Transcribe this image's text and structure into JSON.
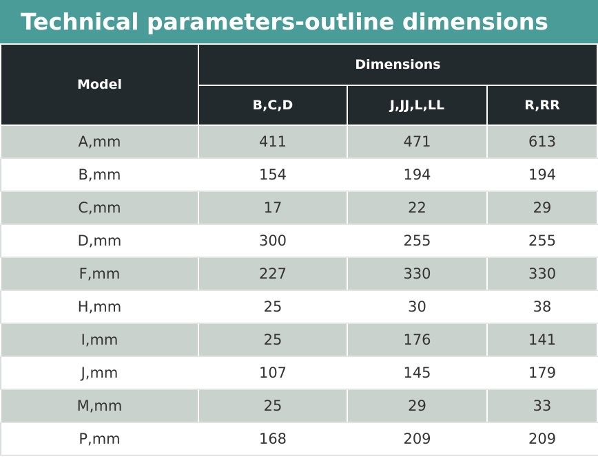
{
  "header": {
    "title": "Technical parameters-outline dimensions"
  },
  "table": {
    "model_header": "Model",
    "group_header": "Dimensions",
    "columns": [
      "B,C,D",
      "J,JJ,L,LL",
      "R,RR"
    ],
    "rows": [
      [
        "A,mm",
        411,
        471,
        613
      ],
      [
        "B,mm",
        154,
        194,
        194
      ],
      [
        "C,mm",
        17,
        22,
        29
      ],
      [
        "D,mm",
        300,
        255,
        255
      ],
      [
        "F,mm",
        227,
        330,
        330
      ],
      [
        "H,mm",
        25,
        30,
        38
      ],
      [
        "I,mm",
        25,
        176,
        141
      ],
      [
        "J,mm",
        107,
        145,
        179
      ],
      [
        "M,mm",
        25,
        29,
        33
      ],
      [
        "P,mm",
        168,
        209,
        209
      ]
    ]
  }
}
